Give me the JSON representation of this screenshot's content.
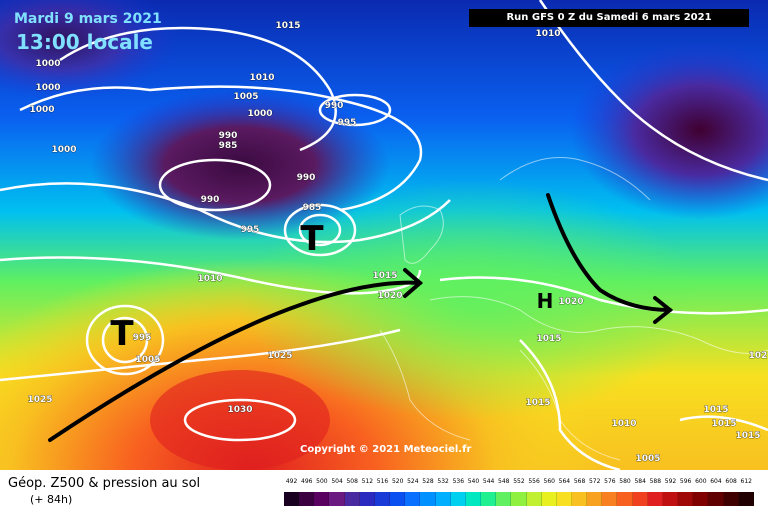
{
  "header": {
    "date": "Mardi 9 mars 2021",
    "time": "13:00 locale",
    "run": "Run GFS 0 Z du Samedi 6 mars 2021"
  },
  "copyright": "Copyright © 2021 Meteociel.fr",
  "legend": {
    "title": "Géop. Z500 & pression au sol",
    "subtitle": "(+ 84h)",
    "scale_values": [
      "492",
      "496",
      "500",
      "504",
      "508",
      "512",
      "516",
      "520",
      "524",
      "528",
      "532",
      "536",
      "540",
      "544",
      "548",
      "552",
      "556",
      "560",
      "564",
      "568",
      "572",
      "576",
      "580",
      "584",
      "588",
      "592",
      "596",
      "600",
      "604",
      "608",
      "612"
    ],
    "scale_colors": [
      "#1a0020",
      "#3a0040",
      "#5a0060",
      "#6a1a80",
      "#4a2aa0",
      "#2a2ac0",
      "#1a3ad8",
      "#0a50f0",
      "#0a70ff",
      "#0090ff",
      "#00b0ff",
      "#00d0f0",
      "#00e8c0",
      "#20f090",
      "#60f060",
      "#90f040",
      "#c0f030",
      "#e8f020",
      "#f8e020",
      "#f8c020",
      "#f8a020",
      "#f88020",
      "#f86020",
      "#f04020",
      "#e02020",
      "#c01010",
      "#a00808",
      "#800000",
      "#600000",
      "#400000",
      "#200000"
    ]
  },
  "pressure_labels": [
    {
      "text": "1015"
    },
    {
      "text": "1010"
    },
    {
      "text": "1000"
    },
    {
      "text": "1000"
    },
    {
      "text": "1000"
    },
    {
      "text": "1000"
    },
    {
      "text": "1010"
    },
    {
      "text": "1005"
    },
    {
      "text": "1000"
    },
    {
      "text": "990"
    },
    {
      "text": "995"
    },
    {
      "text": "990"
    },
    {
      "text": "985"
    },
    {
      "text": "990"
    },
    {
      "text": "990"
    },
    {
      "text": "985"
    },
    {
      "text": "995"
    },
    {
      "text": "1010"
    },
    {
      "text": "1015"
    },
    {
      "text": "1020"
    },
    {
      "text": "1020"
    },
    {
      "text": "1015"
    },
    {
      "text": "995"
    },
    {
      "text": "1005"
    },
    {
      "text": "1025"
    },
    {
      "text": "1025"
    },
    {
      "text": "1030"
    },
    {
      "text": "1015"
    },
    {
      "text": "1010"
    },
    {
      "text": "1005"
    },
    {
      "text": "1015"
    },
    {
      "text": "1015"
    },
    {
      "text": "1015"
    },
    {
      "text": "102"
    }
  ],
  "centers": [
    {
      "symbol": "T"
    },
    {
      "symbol": "T"
    },
    {
      "symbol": "H"
    }
  ]
}
